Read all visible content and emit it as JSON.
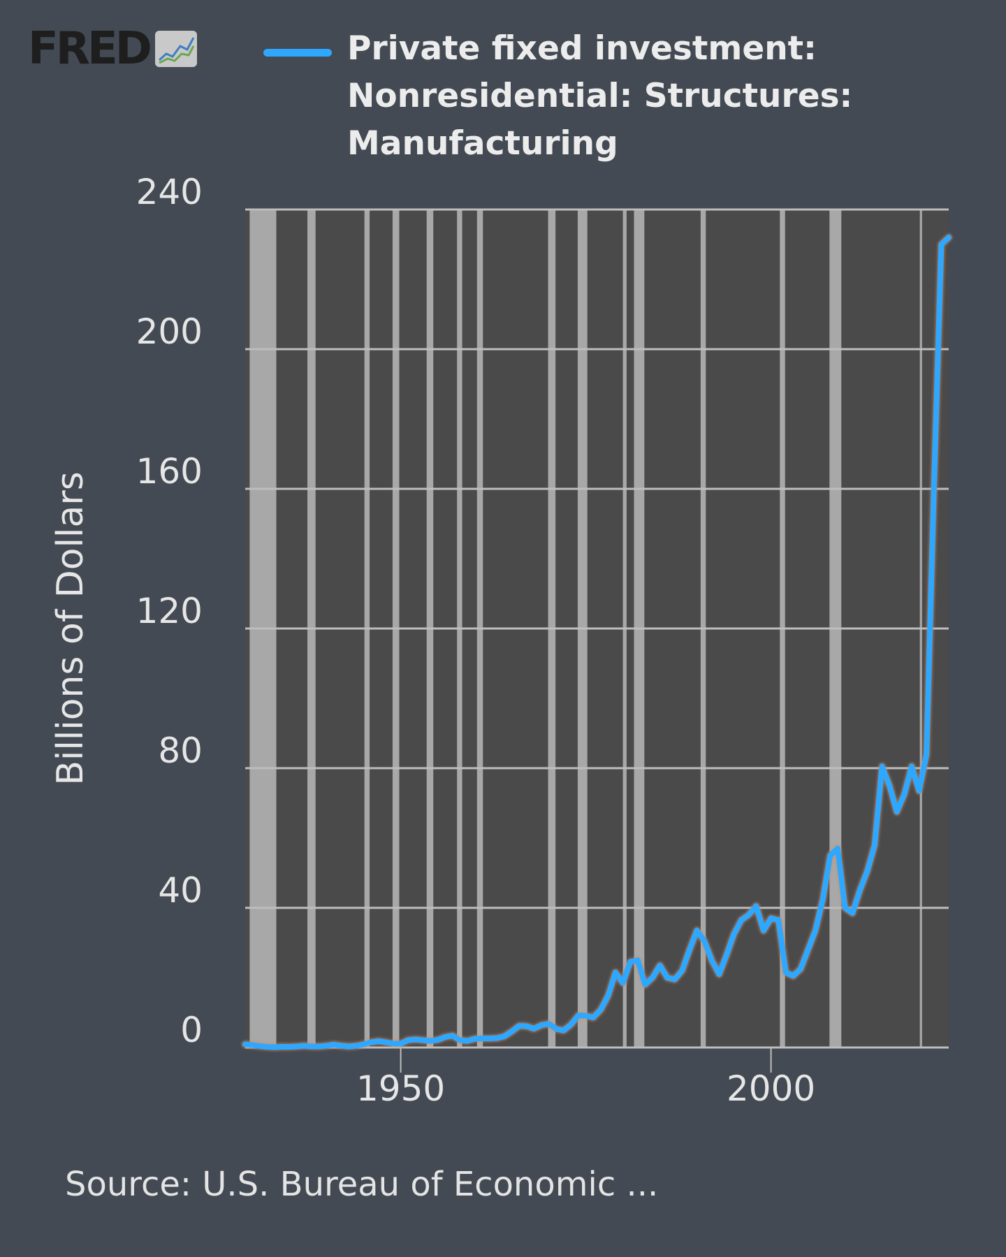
{
  "brand": {
    "text": "FRED",
    "icon": "fred-chart-icon"
  },
  "legend": {
    "label": "Private fixed investment: Nonresidential: Structures: Manufacturing",
    "color": "#2ea8ff"
  },
  "source": "Source: U.S. Bureau of Economic ...",
  "colors": {
    "background": "#434a53",
    "plot": "#4a4a4a",
    "grid": "#bdbdbd",
    "recession": "#a8a8a8",
    "line": "#2ea8ff",
    "text": "#e6e6e6"
  },
  "chart_data": {
    "type": "line",
    "ylabel": "Billions of Dollars",
    "xlim": [
      1929,
      2024
    ],
    "ylim": [
      0,
      240
    ],
    "yticks": [
      0,
      40,
      80,
      120,
      160,
      200,
      240
    ],
    "xticks": [
      1950,
      2000
    ],
    "grid": true,
    "legend_position": "top",
    "recessions": [
      [
        1929.6,
        1933.2
      ],
      [
        1937.4,
        1938.5
      ],
      [
        1945.1,
        1945.8
      ],
      [
        1948.9,
        1949.8
      ],
      [
        1953.5,
        1954.4
      ],
      [
        1957.6,
        1958.3
      ],
      [
        1960.3,
        1961.1
      ],
      [
        1969.9,
        1970.9
      ],
      [
        1973.9,
        1975.2
      ],
      [
        1980.0,
        1980.5
      ],
      [
        1981.5,
        1982.9
      ],
      [
        1990.5,
        1991.2
      ],
      [
        2001.2,
        2001.9
      ],
      [
        2007.9,
        2009.5
      ],
      [
        2020.1,
        2020.4
      ]
    ],
    "series": [
      {
        "values": [
          [
            1929,
            0.9
          ],
          [
            1930,
            0.7
          ],
          [
            1931,
            0.4
          ],
          [
            1932,
            0.2
          ],
          [
            1933,
            0.1
          ],
          [
            1934,
            0.2
          ],
          [
            1935,
            0.2
          ],
          [
            1936,
            0.3
          ],
          [
            1937,
            0.5
          ],
          [
            1938,
            0.3
          ],
          [
            1939,
            0.3
          ],
          [
            1940,
            0.5
          ],
          [
            1941,
            0.8
          ],
          [
            1942,
            0.5
          ],
          [
            1943,
            0.3
          ],
          [
            1944,
            0.5
          ],
          [
            1945,
            0.9
          ],
          [
            1946,
            1.5
          ],
          [
            1947,
            1.8
          ],
          [
            1948,
            1.5
          ],
          [
            1949,
            1.1
          ],
          [
            1950,
            1.1
          ],
          [
            1951,
            2.1
          ],
          [
            1952,
            2.3
          ],
          [
            1953,
            2.1
          ],
          [
            1954,
            1.9
          ],
          [
            1955,
            2.2
          ],
          [
            1956,
            3.0
          ],
          [
            1957,
            3.4
          ],
          [
            1958,
            2.1
          ],
          [
            1959,
            1.9
          ],
          [
            1960,
            2.5
          ],
          [
            1961,
            2.6
          ],
          [
            1962,
            2.6
          ],
          [
            1963,
            2.7
          ],
          [
            1964,
            3.2
          ],
          [
            1965,
            4.6
          ],
          [
            1966,
            6.2
          ],
          [
            1967,
            6.1
          ],
          [
            1968,
            5.4
          ],
          [
            1969,
            6.4
          ],
          [
            1970,
            6.8
          ],
          [
            1971,
            5.3
          ],
          [
            1972,
            4.9
          ],
          [
            1973,
            6.6
          ],
          [
            1974,
            9.2
          ],
          [
            1975,
            9.1
          ],
          [
            1976,
            8.6
          ],
          [
            1977,
            10.8
          ],
          [
            1978,
            14.8
          ],
          [
            1979,
            21.5
          ],
          [
            1980,
            18.5
          ],
          [
            1981,
            24.5
          ],
          [
            1982,
            25.0
          ],
          [
            1983,
            18.0
          ],
          [
            1984,
            20.0
          ],
          [
            1985,
            23.5
          ],
          [
            1986,
            20.0
          ],
          [
            1987,
            19.5
          ],
          [
            1988,
            22.0
          ],
          [
            1989,
            28.0
          ],
          [
            1990,
            33.5
          ],
          [
            1991,
            30.5
          ],
          [
            1992,
            25.0
          ],
          [
            1993,
            21.0
          ],
          [
            1994,
            26.5
          ],
          [
            1995,
            32.5
          ],
          [
            1996,
            36.5
          ],
          [
            1997,
            38.0
          ],
          [
            1998,
            40.5
          ],
          [
            1999,
            33.5
          ],
          [
            2000,
            37.0
          ],
          [
            2001,
            36.5
          ],
          [
            2002,
            21.5
          ],
          [
            2003,
            20.5
          ],
          [
            2004,
            22.5
          ],
          [
            2005,
            28.0
          ],
          [
            2006,
            33.5
          ],
          [
            2007,
            42.5
          ],
          [
            2008,
            55.0
          ],
          [
            2009,
            57.0
          ],
          [
            2010,
            40.0
          ],
          [
            2011,
            38.5
          ],
          [
            2012,
            45.0
          ],
          [
            2013,
            50.5
          ],
          [
            2014,
            58.0
          ],
          [
            2015,
            80.5
          ],
          [
            2016,
            75.0
          ],
          [
            2017,
            67.5
          ],
          [
            2018,
            72.5
          ],
          [
            2019,
            80.5
          ],
          [
            2020,
            73.5
          ],
          [
            2021,
            84.0
          ],
          [
            2022,
            160.0
          ],
          [
            2023,
            230.0
          ],
          [
            2024,
            232.0
          ]
        ]
      }
    ]
  }
}
